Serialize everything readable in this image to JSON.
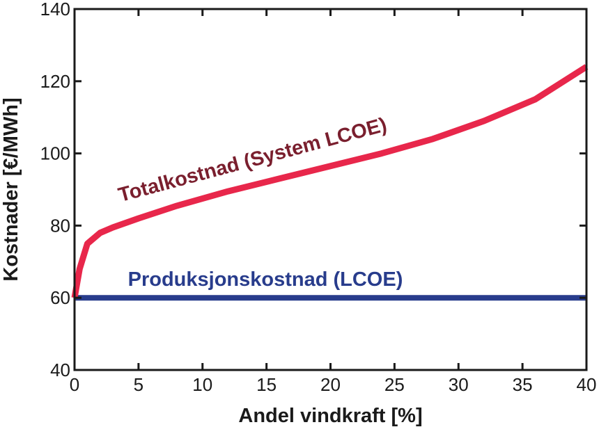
{
  "chart_data": {
    "type": "line",
    "xlabel": "Andel vindkraft [%]",
    "ylabel": "Kostnader [€/MWh]",
    "xlim": [
      0,
      40
    ],
    "ylim": [
      40,
      140
    ],
    "xticks": [
      0,
      5,
      10,
      15,
      20,
      25,
      30,
      35,
      40
    ],
    "yticks": [
      40,
      60,
      80,
      100,
      120,
      140
    ],
    "grid": false,
    "series": [
      {
        "name": "Totalkostnad (System LCOE)",
        "color": "#e8274b",
        "label_color": "#7a1f2e",
        "x": [
          0,
          0.4,
          1,
          2,
          3,
          5,
          8,
          12,
          16,
          20,
          24,
          28,
          32,
          36,
          40
        ],
        "y": [
          60,
          68,
          75,
          78,
          79.5,
          82,
          85.5,
          89.5,
          93,
          96.5,
          100,
          104,
          109,
          115,
          124
        ]
      },
      {
        "name": "Produksjonskostnad (LCOE)",
        "color": "#283c8c",
        "label_color": "#283c8c",
        "x": [
          0,
          40
        ],
        "y": [
          60,
          60
        ]
      }
    ]
  }
}
